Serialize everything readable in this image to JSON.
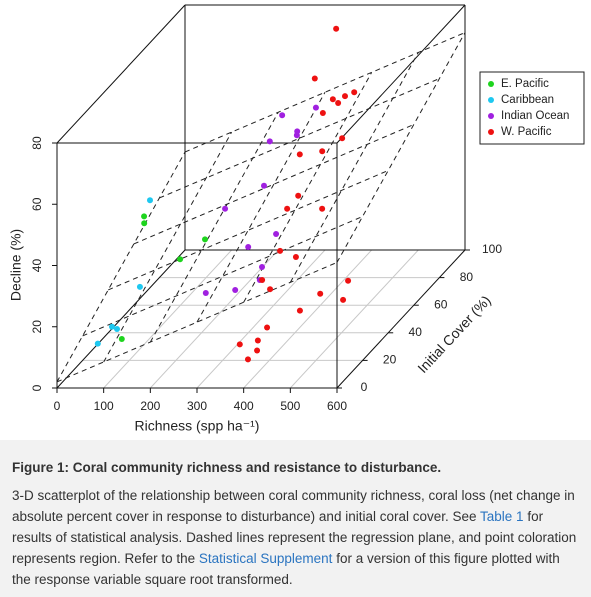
{
  "chart_data": {
    "type": "scatter3d",
    "xlabel": "Richness (spp ha⁻¹)",
    "ylabel": "Initial Cover (%)",
    "zlabel": "Decline (%)",
    "xlim": [
      0,
      600
    ],
    "ylim": [
      0,
      100
    ],
    "zlim": [
      0,
      80
    ],
    "xticks": [
      0,
      100,
      200,
      300,
      400,
      500,
      600
    ],
    "yticks": [
      0,
      20,
      40,
      60,
      80,
      100
    ],
    "zticks": [
      0,
      20,
      40,
      60,
      80
    ],
    "grid": true,
    "legend": "upper right",
    "regression_plane": {
      "intercept": 2,
      "richness_coef": 0.065,
      "cover_coef": 0.3
    },
    "series": [
      {
        "name": "E. Pacific",
        "color": "#1ed41e",
        "x": [
          154,
          180,
          22,
          36,
          84
        ],
        "y": [
          40,
          50,
          60,
          55,
          20
        ],
        "z": [
          24,
          26,
          29,
          29,
          7
        ]
      },
      {
        "name": "Caribbean",
        "color": "#1ec8f0",
        "x": [
          21,
          68,
          63,
          60,
          60
        ],
        "y": [
          65,
          40,
          20,
          25,
          10
        ],
        "z": [
          32,
          15,
          11,
          8,
          10
        ]
      },
      {
        "name": "Indian Ocean",
        "color": "#a020e0",
        "x": [
          263,
          308,
          309,
          322,
          264,
          279,
          223,
          300,
          346,
          357,
          366,
          327,
          264
        ],
        "y": [
          80,
          90,
          75,
          70,
          70,
          60,
          50,
          40,
          45,
          30,
          25,
          20,
          20
        ],
        "z": [
          53,
          51,
          50,
          51,
          49,
          39,
          36,
          28,
          30,
          26,
          24,
          23,
          22
        ]
      },
      {
        "name": "W. Pacific",
        "color": "#ee1111",
        "x": [
          365,
          333,
          390,
          384,
          383,
          358,
          364,
          419,
          390,
          342,
          356,
          366,
          431,
          382,
          416,
          371,
          388,
          452,
          468,
          514,
          517,
          409,
          403,
          415,
          378,
          401
        ],
        "y": [
          85,
          80,
          90,
          85,
          80,
          85,
          75,
          70,
          65,
          65,
          50,
          55,
          50,
          35,
          35,
          25,
          25,
          25,
          35,
          40,
          35,
          15,
          10,
          5,
          5,
          3
        ],
        "z": [
          79,
          65,
          56,
          57,
          57,
          56,
          56,
          50,
          48,
          47,
          36,
          38,
          36,
          29,
          27,
          24,
          21,
          14,
          15,
          17,
          13,
          13,
          11,
          10,
          12,
          8
        ]
      }
    ]
  },
  "caption": {
    "title": "Figure 1: Coral community richness and resistance to disturbance.",
    "text": [
      "3-D scatterplot of the relationship between coral community richness, coral loss (net change in absolute percent cover in response to disturbance) and initial coral cover. See ",
      "Table 1",
      " for results of statistical analysis. Dashed lines represent the regression plane, and point coloration represents region. Refer to the ",
      "Statistical Supplement",
      " for a version of this figure plotted with the response variable square root transformed."
    ]
  }
}
